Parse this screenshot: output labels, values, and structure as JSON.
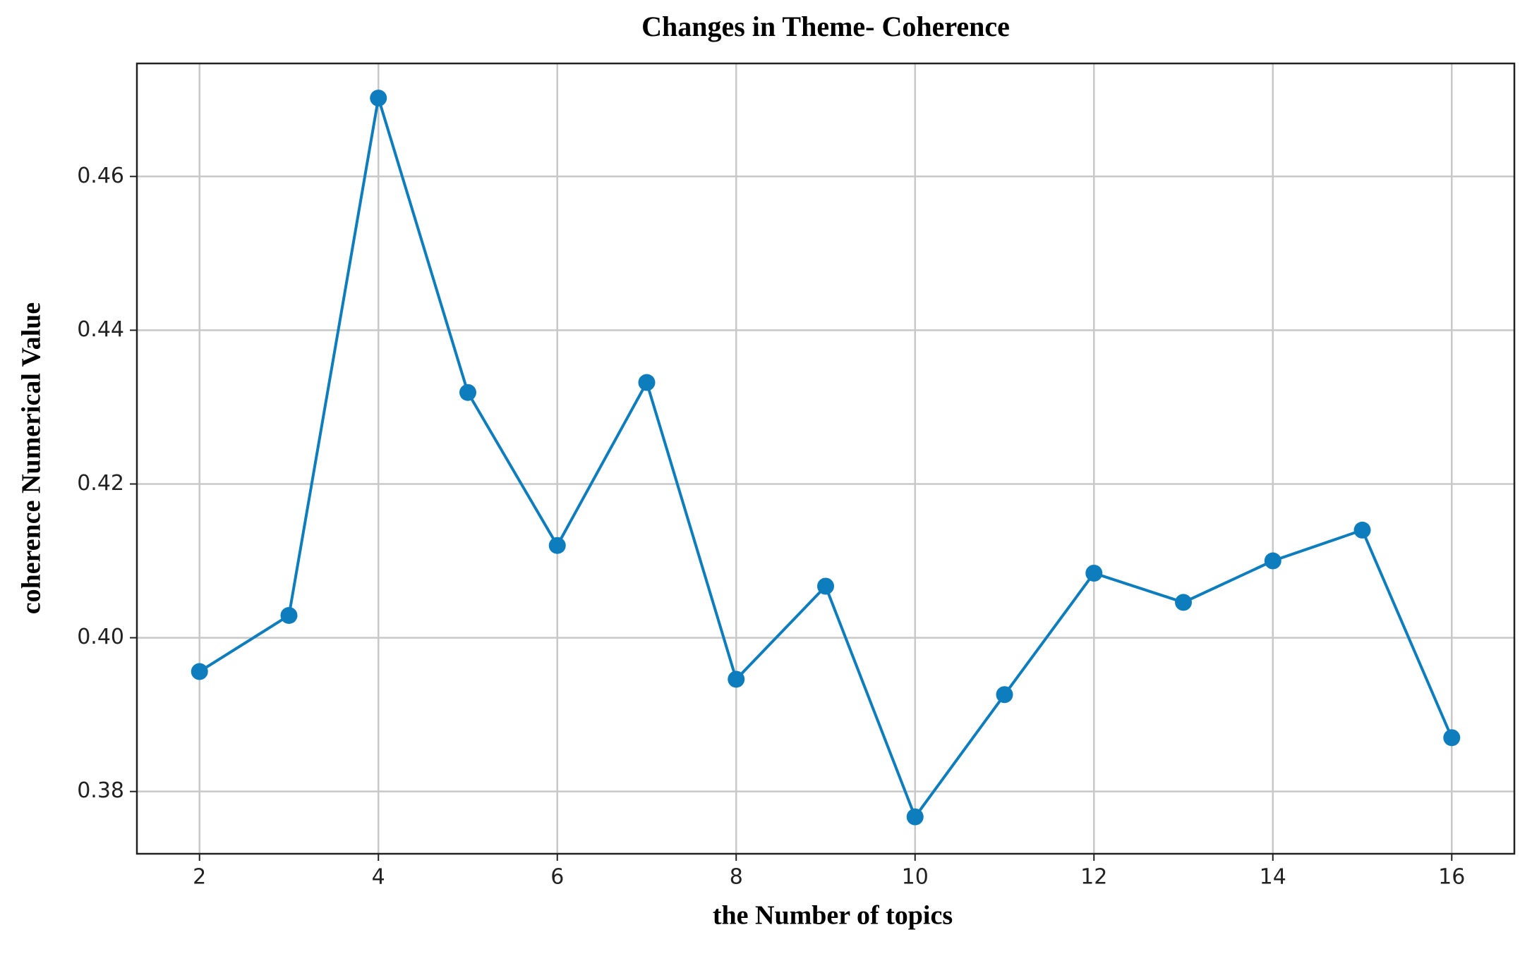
{
  "chart_data": {
    "type": "line",
    "title": "Changes in Theme- Coherence",
    "x_label": "the Number of topics",
    "y_label": "coherence Numerical Value",
    "x": [
      2,
      3,
      4,
      5,
      6,
      7,
      8,
      9,
      10,
      11,
      12,
      13,
      14,
      15,
      16
    ],
    "series": [
      {
        "name": "coherence",
        "color": "#0e7dbd",
        "values": [
          0.3956,
          0.4029,
          0.4702,
          0.4319,
          0.412,
          0.4332,
          0.3946,
          0.4067,
          0.3767,
          0.3926,
          0.4084,
          0.4046,
          0.41,
          0.414,
          0.387
        ]
      }
    ],
    "xlim": [
      1.3,
      16.7
    ],
    "ylim": [
      0.3719,
      0.4747
    ],
    "xticks": [
      2,
      4,
      6,
      8,
      10,
      12,
      14,
      16
    ],
    "yticks": [
      0.38,
      {
        "value": 0.4,
        "label": "0.40"
      },
      0.42,
      0.44,
      0.46
    ],
    "grid": true
  }
}
